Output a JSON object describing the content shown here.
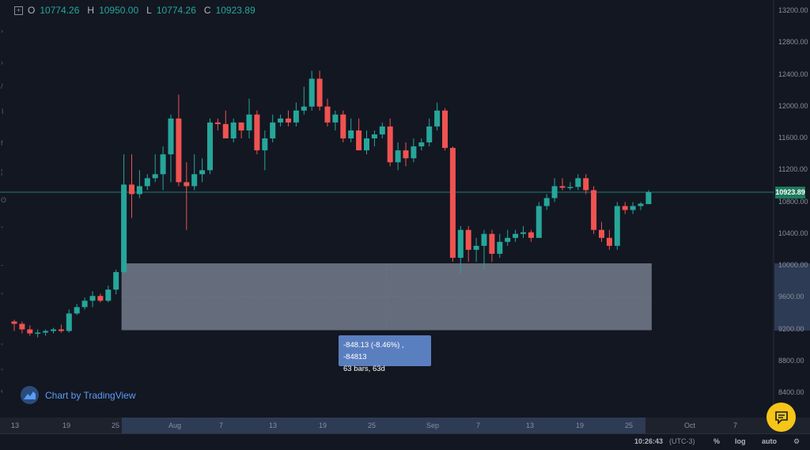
{
  "ohlc": {
    "o_label": "O",
    "o_value": "10774.26",
    "h_label": "H",
    "h_value": "10950.00",
    "l_label": "L",
    "l_value": "10774.26",
    "c_label": "C",
    "c_value": "10923.89"
  },
  "current_price_label": "10923.89",
  "y_axis_ticks": [
    "13200.00",
    "12800.00",
    "12400.00",
    "12000.00",
    "11600.00",
    "11200.00",
    "10800.00",
    "10400.00",
    "10000.00",
    "9600.00",
    "9200.00",
    "8800.00",
    "8400.00"
  ],
  "x_axis_ticks": [
    "13",
    "19",
    "25",
    "Aug",
    "7",
    "13",
    "19",
    "25",
    "Sep",
    "7",
    "13",
    "19",
    "25",
    "Oct",
    "7",
    "13"
  ],
  "measure_tooltip": {
    "line1": "-848.13 (-8.46%) , -84813",
    "line2": "63 bars, 63d"
  },
  "brand_text": "Chart by TradingView",
  "footer": {
    "time": "10:26:43",
    "timezone": "(UTC-3)",
    "percent": "%",
    "log": "log",
    "auto": "auto"
  },
  "colors": {
    "up": "#26a69a",
    "down": "#ef5350",
    "background": "#131722",
    "range_box": "#a9b3c4",
    "price_line": "#26a69a"
  },
  "chart_data": {
    "type": "candlestick",
    "y_range": [
      8200,
      13300
    ],
    "ylim_axis_label": "",
    "candles": [
      {
        "o": 9300,
        "h": 9320,
        "l": 9180,
        "c": 9270
      },
      {
        "o": 9270,
        "h": 9300,
        "l": 9150,
        "c": 9200
      },
      {
        "o": 9200,
        "h": 9250,
        "l": 9120,
        "c": 9150
      },
      {
        "o": 9150,
        "h": 9200,
        "l": 9100,
        "c": 9160
      },
      {
        "o": 9160,
        "h": 9200,
        "l": 9120,
        "c": 9180
      },
      {
        "o": 9180,
        "h": 9220,
        "l": 9150,
        "c": 9200
      },
      {
        "o": 9200,
        "h": 9260,
        "l": 9160,
        "c": 9180
      },
      {
        "o": 9180,
        "h": 9450,
        "l": 9160,
        "c": 9400
      },
      {
        "o": 9400,
        "h": 9520,
        "l": 9380,
        "c": 9480
      },
      {
        "o": 9480,
        "h": 9600,
        "l": 9450,
        "c": 9560
      },
      {
        "o": 9560,
        "h": 9680,
        "l": 9480,
        "c": 9620
      },
      {
        "o": 9620,
        "h": 9650,
        "l": 9540,
        "c": 9560
      },
      {
        "o": 9560,
        "h": 9750,
        "l": 9540,
        "c": 9700
      },
      {
        "o": 9700,
        "h": 9950,
        "l": 9640,
        "c": 9920
      },
      {
        "o": 9920,
        "h": 11400,
        "l": 9900,
        "c": 11020
      },
      {
        "o": 11020,
        "h": 11400,
        "l": 10600,
        "c": 10900
      },
      {
        "o": 10900,
        "h": 11200,
        "l": 10850,
        "c": 11000
      },
      {
        "o": 11000,
        "h": 11150,
        "l": 10950,
        "c": 11100
      },
      {
        "o": 11100,
        "h": 11400,
        "l": 11050,
        "c": 11150
      },
      {
        "o": 11150,
        "h": 11500,
        "l": 10950,
        "c": 11400
      },
      {
        "o": 11400,
        "h": 11900,
        "l": 11050,
        "c": 11850
      },
      {
        "o": 11850,
        "h": 12150,
        "l": 11000,
        "c": 11050
      },
      {
        "o": 11050,
        "h": 11300,
        "l": 10450,
        "c": 11000
      },
      {
        "o": 11000,
        "h": 11400,
        "l": 10950,
        "c": 11150
      },
      {
        "o": 11150,
        "h": 11350,
        "l": 11050,
        "c": 11200
      },
      {
        "o": 11200,
        "h": 11850,
        "l": 11150,
        "c": 11800
      },
      {
        "o": 11800,
        "h": 11850,
        "l": 11700,
        "c": 11780
      },
      {
        "o": 11780,
        "h": 11950,
        "l": 11600,
        "c": 11600
      },
      {
        "o": 11600,
        "h": 11850,
        "l": 11550,
        "c": 11800
      },
      {
        "o": 11800,
        "h": 11800,
        "l": 11600,
        "c": 11700
      },
      {
        "o": 11700,
        "h": 12100,
        "l": 11600,
        "c": 11900
      },
      {
        "o": 11900,
        "h": 11950,
        "l": 11400,
        "c": 11450
      },
      {
        "o": 11450,
        "h": 11700,
        "l": 11200,
        "c": 11600
      },
      {
        "o": 11600,
        "h": 11900,
        "l": 11550,
        "c": 11800
      },
      {
        "o": 11800,
        "h": 11900,
        "l": 11750,
        "c": 11850
      },
      {
        "o": 11850,
        "h": 11950,
        "l": 11750,
        "c": 11800
      },
      {
        "o": 11800,
        "h": 12050,
        "l": 11750,
        "c": 11950
      },
      {
        "o": 11950,
        "h": 12250,
        "l": 11900,
        "c": 12000
      },
      {
        "o": 12000,
        "h": 12450,
        "l": 11950,
        "c": 12350
      },
      {
        "o": 12350,
        "h": 12450,
        "l": 11950,
        "c": 12000
      },
      {
        "o": 12000,
        "h": 12100,
        "l": 11750,
        "c": 11800
      },
      {
        "o": 11800,
        "h": 11950,
        "l": 11700,
        "c": 11900
      },
      {
        "o": 11900,
        "h": 11950,
        "l": 11550,
        "c": 11600
      },
      {
        "o": 11600,
        "h": 11850,
        "l": 11550,
        "c": 11700
      },
      {
        "o": 11700,
        "h": 11850,
        "l": 11450,
        "c": 11450
      },
      {
        "o": 11450,
        "h": 11700,
        "l": 11400,
        "c": 11600
      },
      {
        "o": 11600,
        "h": 11700,
        "l": 11500,
        "c": 11650
      },
      {
        "o": 11650,
        "h": 11800,
        "l": 11600,
        "c": 11750
      },
      {
        "o": 11750,
        "h": 11850,
        "l": 11250,
        "c": 11300
      },
      {
        "o": 11300,
        "h": 11550,
        "l": 11200,
        "c": 11450
      },
      {
        "o": 11450,
        "h": 11550,
        "l": 11250,
        "c": 11350
      },
      {
        "o": 11350,
        "h": 11600,
        "l": 11300,
        "c": 11500
      },
      {
        "o": 11500,
        "h": 11600,
        "l": 11450,
        "c": 11550
      },
      {
        "o": 11550,
        "h": 11850,
        "l": 11500,
        "c": 11750
      },
      {
        "o": 11750,
        "h": 12050,
        "l": 11700,
        "c": 11950
      },
      {
        "o": 11950,
        "h": 11980,
        "l": 11450,
        "c": 11480
      },
      {
        "o": 11480,
        "h": 11500,
        "l": 10050,
        "c": 10100
      },
      {
        "o": 10100,
        "h": 10500,
        "l": 9900,
        "c": 10450
      },
      {
        "o": 10450,
        "h": 10500,
        "l": 10050,
        "c": 10200
      },
      {
        "o": 10200,
        "h": 10350,
        "l": 10050,
        "c": 10250
      },
      {
        "o": 10250,
        "h": 10450,
        "l": 9950,
        "c": 10400
      },
      {
        "o": 10400,
        "h": 10450,
        "l": 10050,
        "c": 10150
      },
      {
        "o": 10150,
        "h": 10400,
        "l": 10100,
        "c": 10300
      },
      {
        "o": 10300,
        "h": 10450,
        "l": 10250,
        "c": 10350
      },
      {
        "o": 10350,
        "h": 10450,
        "l": 10300,
        "c": 10400
      },
      {
        "o": 10400,
        "h": 10500,
        "l": 10350,
        "c": 10420
      },
      {
        "o": 10420,
        "h": 10450,
        "l": 10300,
        "c": 10350
      },
      {
        "o": 10350,
        "h": 10800,
        "l": 10350,
        "c": 10750
      },
      {
        "o": 10750,
        "h": 10900,
        "l": 10700,
        "c": 10850
      },
      {
        "o": 10850,
        "h": 11100,
        "l": 10800,
        "c": 11000
      },
      {
        "o": 11000,
        "h": 11100,
        "l": 10950,
        "c": 10980
      },
      {
        "o": 10980,
        "h": 11050,
        "l": 10950,
        "c": 10990
      },
      {
        "o": 10990,
        "h": 11150,
        "l": 10950,
        "c": 11100
      },
      {
        "o": 11100,
        "h": 11150,
        "l": 10900,
        "c": 10950
      },
      {
        "o": 10950,
        "h": 11000,
        "l": 10400,
        "c": 10450
      },
      {
        "o": 10450,
        "h": 10550,
        "l": 10300,
        "c": 10350
      },
      {
        "o": 10350,
        "h": 10450,
        "l": 10200,
        "c": 10250
      },
      {
        "o": 10250,
        "h": 10800,
        "l": 10200,
        "c": 10750
      },
      {
        "o": 10750,
        "h": 10800,
        "l": 10650,
        "c": 10700
      },
      {
        "o": 10700,
        "h": 10800,
        "l": 10650,
        "c": 10750
      },
      {
        "o": 10750,
        "h": 10800,
        "l": 10700,
        "c": 10780
      },
      {
        "o": 10774.26,
        "h": 10950,
        "l": 10774.26,
        "c": 10923.89
      }
    ],
    "current_price": 10923.89,
    "measure_range": {
      "top": 10030,
      "bottom": 9190,
      "start_index": 14,
      "end_index": 81
    }
  }
}
